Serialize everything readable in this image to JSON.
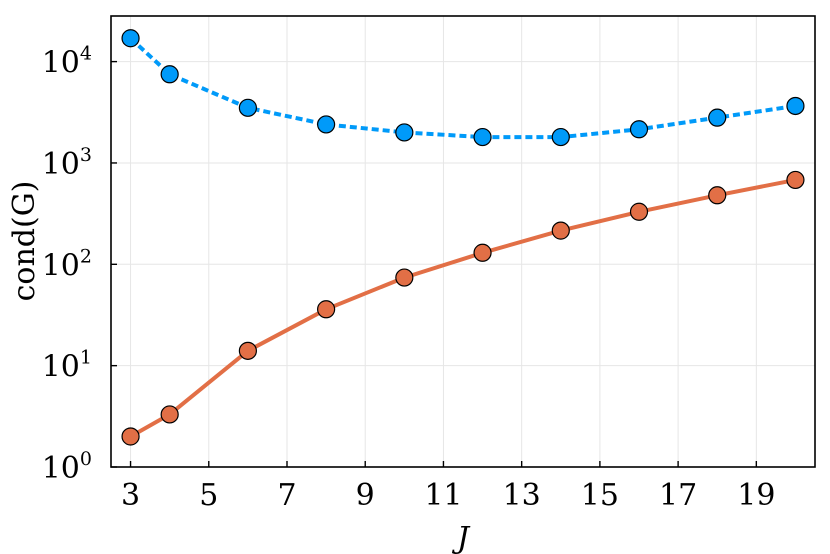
{
  "chart_data": {
    "type": "line",
    "xlabel": "J",
    "ylabel": "cond(G)",
    "yscale": "log10",
    "xlim": [
      2.5,
      20.5
    ],
    "ylim_exponent": [
      0,
      4.45
    ],
    "x_ticks": [
      3,
      5,
      7,
      9,
      11,
      13,
      15,
      17,
      19
    ],
    "y_tick_base": "10",
    "y_tick_exponents": [
      "0",
      "1",
      "2",
      "3",
      "4"
    ],
    "grid": true,
    "legend": "none",
    "x": [
      3,
      4,
      6,
      8,
      10,
      12,
      14,
      16,
      18,
      20
    ],
    "series": [
      {
        "color": "#009af9",
        "line_style": "dashed",
        "marker": "circle",
        "values": [
          17000,
          7500,
          3500,
          2400,
          2000,
          1800,
          1800,
          2150,
          2800,
          3650
        ]
      },
      {
        "color": "#e26f46",
        "line_style": "solid",
        "marker": "circle",
        "values": [
          2,
          3.3,
          14,
          36,
          74,
          130,
          215,
          330,
          480,
          680
        ]
      }
    ]
  }
}
